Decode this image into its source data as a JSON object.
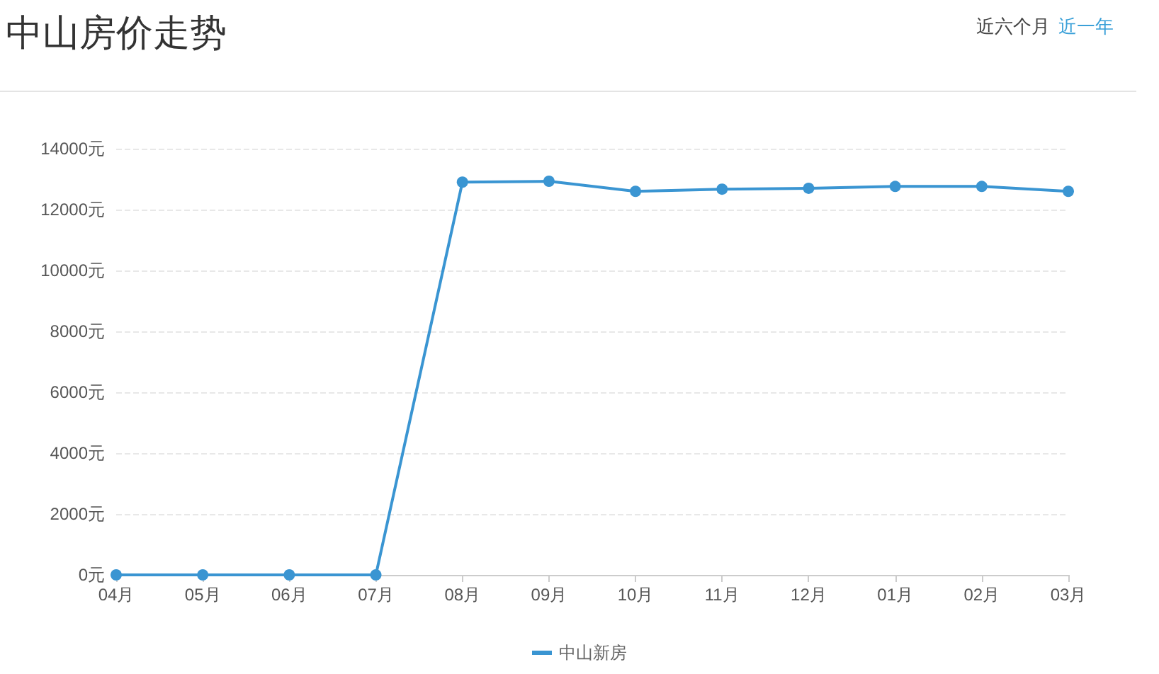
{
  "chart_data": {
    "type": "line",
    "title": "中山房价走势",
    "annotations": [
      "近六个月",
      "近一年"
    ],
    "categories": [
      "04月",
      "05月",
      "06月",
      "07月",
      "08月",
      "09月",
      "10月",
      "11月",
      "12月",
      "01月",
      "02月",
      "03月"
    ],
    "series": [
      {
        "name": "中山新房",
        "color": "#3a95d2",
        "values": [
          0,
          0,
          0,
          0,
          12900,
          12930,
          12600,
          12670,
          12700,
          12760,
          12760,
          12600
        ]
      }
    ],
    "ylim": [
      0,
      14000
    ],
    "yticks": [
      {
        "value": 0,
        "label": "0元"
      },
      {
        "value": 2000,
        "label": "2000元"
      },
      {
        "value": 4000,
        "label": "4000元"
      },
      {
        "value": 6000,
        "label": "6000元"
      },
      {
        "value": 8000,
        "label": "8000元"
      },
      {
        "value": 10000,
        "label": "10000元"
      },
      {
        "value": 12000,
        "label": "12000元"
      },
      {
        "value": 14000,
        "label": "14000元"
      }
    ],
    "grid": "y",
    "legend": "bottom",
    "marker": "circle",
    "line_style": "solid"
  }
}
